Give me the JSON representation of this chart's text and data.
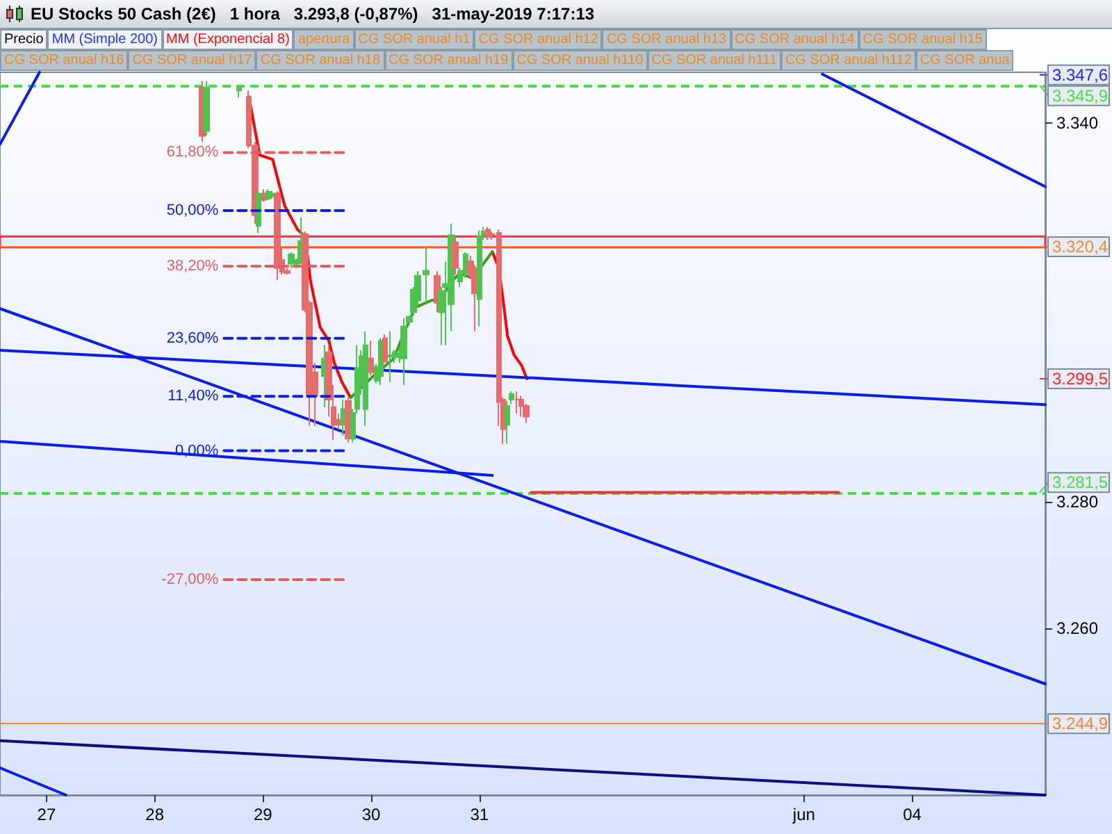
{
  "chart_data": {
    "type": "candlestick",
    "title": "EU Stocks 50 Cash (2€)   1 hora   3.293,8 (-0,87%)   31-may-2019 7:17:13",
    "annotations": [
      "Precio",
      "MM (Simple 200)",
      "MM (Exponencial 8)",
      "apertura",
      "CG SOR anual h1",
      "CG SOR anual h12",
      "CG SOR anual h13",
      "CG SOR anual h14",
      "CG SOR anual h15",
      "CG SOR anual h16",
      "CG SOR anual h17",
      "CG SOR anual h18",
      "CG SOR anual h19",
      "CG SOR anual h110",
      "CG SOR anual h111",
      "CG SOR anual h112",
      "CG SOR anua",
      {
        "text": "3.347,6",
        "y": 3347.6
      },
      {
        "text": "3.299,5",
        "y": 3299.5
      }
    ],
    "xlim": [
      "2019-05-26T13:41",
      "2019-06-05T05:31"
    ],
    "xticks": [
      {
        "value": "2019-05-27",
        "label": "27"
      },
      {
        "value": "2019-05-28",
        "label": "28"
      },
      {
        "value": "2019-05-29",
        "label": "29"
      },
      {
        "value": "2019-05-30",
        "label": "30"
      },
      {
        "value": "2019-05-31",
        "label": "31"
      },
      {
        "value": "2019-06-03",
        "label": "jun"
      },
      {
        "value": "2019-06-04",
        "label": "04"
      }
    ],
    "ylim": [
      3233.6,
      3348.0
    ],
    "yticks": [
      {
        "value": 3260,
        "label": "3.260"
      },
      {
        "value": 3280,
        "label": "3.280"
      },
      {
        "value": 3340,
        "label": "3.340"
      }
    ],
    "grid": false,
    "marker": "none",
    "series": [
      {
        "x": [
          "2019-05-28T10:34",
          "2019-05-28T11:31",
          "2019-05-28T18:43",
          "2019-05-28T20:53",
          "2019-05-28T22:19",
          "2019-05-28T23:02",
          "2019-05-29T00:14",
          "2019-05-29T01:12",
          "2019-05-29T02:10",
          "2019-05-29T03:07",
          "2019-05-29T04:19",
          "2019-05-29T05:17",
          "2019-05-29T06:14",
          "2019-05-29T07:26",
          "2019-05-29T08:24",
          "2019-05-29T09:22",
          "2019-05-29T10:19",
          "2019-05-29T11:31",
          "2019-05-29T13:41",
          "2019-05-29T14:38",
          "2019-05-29T15:36",
          "2019-05-29T16:48",
          "2019-05-29T17:46",
          "2019-05-29T18:58",
          "2019-05-29T19:55",
          "2019-05-29T20:53",
          "2019-05-29T21:50",
          "2019-05-29T22:48",
          "2019-05-30T00:00",
          "2019-05-30T01:12",
          "2019-05-30T02:10",
          "2019-05-30T03:07",
          "2019-05-30T04:19",
          "2019-05-30T05:17",
          "2019-05-30T06:29",
          "2019-05-30T07:12",
          "2019-05-30T08:24",
          "2019-05-30T09:22",
          "2019-05-30T10:19",
          "2019-05-30T12:14",
          "2019-05-30T14:38",
          "2019-05-30T15:36",
          "2019-05-30T16:34",
          "2019-05-30T17:46",
          "2019-05-30T18:43",
          "2019-05-30T19:41",
          "2019-05-30T20:53",
          "2019-05-30T22:05",
          "2019-05-30T23:02",
          "2019-05-31T00:00",
          "2019-05-31T00:58",
          "2019-05-31T01:55",
          "2019-05-31T02:53",
          "2019-05-31T04:19",
          "2019-05-31T05:17",
          "2019-05-31T06:14",
          "2019-05-31T07:12",
          "2019-05-31T08:24",
          "2019-05-31T09:22",
          "2019-05-31T10:19"
        ],
        "ohlc": [
          [
            3345.6,
            3346.6,
            3337.0,
            3337.9
          ],
          [
            3338.7,
            3346.6,
            3338.0,
            3345.6
          ],
          [
            3345.1,
            3346.0,
            3344.0,
            3345.6
          ],
          [
            3344.1,
            3345.1,
            3336.0,
            3336.4
          ],
          [
            3336.4,
            3337.0,
            3324.0,
            3325.4
          ],
          [
            3323.7,
            3329.2,
            3322.6,
            3328.8
          ],
          [
            3328.8,
            3329.5,
            3327.5,
            3327.8
          ],
          [
            3328.0,
            3329.5,
            3327.8,
            3329.1
          ],
          [
            3328.4,
            3329.2,
            3328.0,
            3328.8
          ],
          [
            3328.8,
            3329.2,
            3315.1,
            3317.0
          ],
          [
            3318.3,
            3320.3,
            3316.0,
            3316.4
          ],
          [
            3316.6,
            3317.0,
            3316.0,
            3316.2
          ],
          [
            3317.7,
            3319.5,
            3317.0,
            3319.2
          ],
          [
            3317.7,
            3318.5,
            3317.0,
            3318.3
          ],
          [
            3318.1,
            3325.0,
            3317.7,
            3321.3
          ],
          [
            3322.4,
            3322.8,
            3310.0,
            3310.4
          ],
          [
            3311.5,
            3311.8,
            3292.0,
            3296.9
          ],
          [
            3300.5,
            3302.0,
            3292.0,
            3296.9
          ],
          [
            3299.9,
            3304.8,
            3295.0,
            3302.7
          ],
          [
            3303.7,
            3304.8,
            3293.5,
            3296.2
          ],
          [
            3295.0,
            3298.5,
            3289.8,
            3292.2
          ],
          [
            3293.0,
            3294.0,
            3291.5,
            3292.2
          ],
          [
            3292.2,
            3296.2,
            3290.5,
            3294.7
          ],
          [
            3296.0,
            3296.5,
            3289.4,
            3290.0
          ],
          [
            3290.0,
            3294.7,
            3289.4,
            3294.1
          ],
          [
            3294.7,
            3304.8,
            3294.0,
            3301.2
          ],
          [
            3298.4,
            3304.0,
            3297.0,
            3303.1
          ],
          [
            3294.7,
            3307.0,
            3292.0,
            3304.8
          ],
          [
            3302.7,
            3305.5,
            3300.0,
            3300.5
          ],
          [
            3299.2,
            3301.8,
            3298.8,
            3301.4
          ],
          [
            3299.9,
            3305.9,
            3298.5,
            3305.5
          ],
          [
            3305.9,
            3306.5,
            3302.0,
            3302.2
          ],
          [
            3303.0,
            3307.0,
            3299.0,
            3303.2
          ],
          [
            3302.9,
            3304.0,
            3302.0,
            3303.7
          ],
          [
            3302.9,
            3304.5,
            3302.0,
            3303.5
          ],
          [
            3302.7,
            3309.1,
            3298.5,
            3307.8
          ],
          [
            3308.5,
            3309.5,
            3308.0,
            3309.3
          ],
          [
            3310.0,
            3314.0,
            3309.5,
            3313.6
          ],
          [
            3311.9,
            3316.5,
            3311.0,
            3315.8
          ],
          [
            3316.0,
            3320.3,
            3311.5,
            3316.6
          ],
          [
            3315.8,
            3316.5,
            3310.0,
            3311.5
          ],
          [
            3310.0,
            3314.0,
            3304.8,
            3313.4
          ],
          [
            3314.0,
            3318.0,
            3304.8,
            3314.5
          ],
          [
            3311.3,
            3324.0,
            3307.0,
            3322.2
          ],
          [
            3321.1,
            3322.0,
            3316.0,
            3317.0
          ],
          [
            3314.9,
            3317.0,
            3314.0,
            3316.6
          ],
          [
            3316.2,
            3319.5,
            3315.5,
            3319.2
          ],
          [
            3318.1,
            3319.0,
            3315.5,
            3316.0
          ],
          [
            3317.0,
            3317.5,
            3307.0,
            3313.0
          ],
          [
            3312.1,
            3323.0,
            3307.8,
            3322.0
          ],
          [
            3322.2,
            3323.5,
            3321.5,
            3322.8
          ],
          [
            3323.1,
            3323.5,
            3321.5,
            3322.0
          ],
          [
            3322.4,
            3322.8,
            3321.5,
            3322.2
          ],
          [
            3322.6,
            3323.1,
            3292.0,
            3295.8
          ],
          [
            3296.2,
            3296.5,
            3289.2,
            3291.5
          ],
          [
            3292.2,
            3296.0,
            3289.2,
            3295.2
          ],
          [
            3296.2,
            3297.5,
            3295.5,
            3297.1
          ],
          [
            3296.2,
            3297.5,
            3294.0,
            3296.2
          ],
          [
            3296.2,
            3296.8,
            3293.5,
            3295.2
          ],
          [
            3295.2,
            3295.5,
            3292.5,
            3293.5
          ]
        ],
        "colors": [
          "#e46c6c",
          "#4ec44e",
          "#4ec44e",
          "#e46c6c",
          "#e46c6c",
          "#4ec44e",
          "#e46c6c",
          "#4ec44e",
          "#4ec44e",
          "#e46c6c",
          "#e46c6c",
          "#e46c6c",
          "#4ec44e",
          "#4ec44e",
          "#4ec44e",
          "#e46c6c",
          "#e46c6c",
          "#e46c6c",
          "#4ec44e",
          "#e46c6c",
          "#e46c6c",
          "#e46c6c",
          "#4ec44e",
          "#e46c6c",
          "#4ec44e",
          "#4ec44e",
          "#4ec44e",
          "#4ec44e",
          "#e46c6c",
          "#4ec44e",
          "#4ec44e",
          "#e46c6c",
          "#4ec44e",
          "#4ec44e",
          "#4ec44e",
          "#4ec44e",
          "#4ec44e",
          "#4ec44e",
          "#4ec44e",
          "#4ec44e",
          "#e46c6c",
          "#4ec44e",
          "#4ec44e",
          "#4ec44e",
          "#e46c6c",
          "#4ec44e",
          "#4ec44e",
          "#e46c6c",
          "#e46c6c",
          "#4ec44e",
          "#4ec44e",
          "#e46c6c",
          "#e46c6c",
          "#e46c6c",
          "#e46c6c",
          "#4ec44e",
          "#4ec44e",
          "#e46c6c",
          "#e46c6c",
          "#e46c6c"
        ]
      },
      {
        "type": "line",
        "color": "#ff0000",
        "x": [
          "2019-05-28T20:53",
          "2019-05-28T23:17",
          "2019-05-29T02:10",
          "2019-05-29T04:48",
          "2019-05-29T07:41",
          "2019-05-29T09:22",
          "2019-05-29T10:34",
          "2019-05-29T12:43",
          "2019-05-29T14:38",
          "2019-05-29T15:50",
          "2019-05-29T17:31",
          "2019-05-29T19:26"
        ],
        "values": [
          3344.1,
          3334.9,
          3334.2,
          3326.9,
          3323.1,
          3322.0,
          3314.9,
          3307.6,
          3305.5,
          3302.0,
          3299.0,
          3296.5
        ]
      },
      {
        "type": "line",
        "color": "#ff0000",
        "x": [
          "2019-05-31T02:53",
          "2019-05-31T04:19",
          "2019-05-31T05:17",
          "2019-05-31T06:14",
          "2019-05-31T07:41",
          "2019-05-31T09:22",
          "2019-05-31T10:34"
        ],
        "values": [
          3319.6,
          3317.0,
          3311.9,
          3306.3,
          3303.3,
          3301.6,
          3299.5
        ]
      },
      {
        "type": "line",
        "color": "#3c9a1c",
        "x": [
          "2019-05-29T19:26",
          "2019-05-29T22:19",
          "2019-05-30T00:43",
          "2019-05-30T05:02",
          "2019-05-30T07:26",
          "2019-05-30T09:50",
          "2019-05-30T13:26",
          "2019-05-30T15:36",
          "2019-05-30T17:17",
          "2019-05-30T19:41",
          "2019-05-30T22:05",
          "2019-05-31T00:29",
          "2019-05-31T02:53"
        ],
        "values": [
          3296.5,
          3298.4,
          3300.1,
          3302.7,
          3307.0,
          3310.8,
          3311.9,
          3312.1,
          3314.5,
          3316.2,
          3315.5,
          3317.3,
          3319.6
        ]
      },
      {
        "type": "line",
        "color": "#0a1ee8",
        "x": [
          "2019-05-26T13:41",
          "2019-05-26T22:27"
        ],
        "values": [
          3336.6,
          3348.0
        ]
      },
      {
        "type": "line",
        "color": "#0a1ee8",
        "x": [
          "2019-06-03T04:05",
          "2019-06-05T05:31"
        ],
        "values": [
          3347.7,
          3329.9
        ]
      },
      {
        "type": "line",
        "color": "#0a1ee8",
        "x": [
          "2019-05-26T13:41",
          "2019-06-05T05:31"
        ],
        "values": [
          3304.0,
          3295.4
        ]
      },
      {
        "type": "line",
        "color": "#0a1ee8",
        "x": [
          "2019-05-26T13:41",
          "2019-05-31T02:53"
        ],
        "values": [
          3289.6,
          3284.2
        ]
      },
      {
        "type": "line",
        "color": "#0a1ee8",
        "x": [
          "2019-05-26T13:41",
          "2019-06-05T05:31"
        ],
        "values": [
          3310.6,
          3251.2
        ]
      },
      {
        "type": "line",
        "color": "#0a1080",
        "x": [
          "2019-05-26T13:41",
          "2019-06-05T05:31"
        ],
        "values": [
          3242.2,
          3233.6
        ]
      },
      {
        "type": "line",
        "color": "#0a1ee8",
        "x": [
          "2019-05-26T13:41",
          "2019-05-27T04:19"
        ],
        "values": [
          3237.9,
          3233.6
        ]
      },
      {
        "type": "line",
        "color": "#ee3333",
        "x": [
          "2019-05-31T11:31",
          "2019-06-03T07:41"
        ],
        "values": [
          3281.5,
          3281.5
        ]
      },
      {
        "type": "line",
        "name": "61,80%",
        "color": "#e06060",
        "line_style": "dashed",
        "x": [
          "2019-05-28T15:22",
          "2019-05-29T18:43"
        ],
        "values": [
          3335.3,
          3335.3
        ]
      },
      {
        "type": "line",
        "name": "50,00%",
        "color": "#1020dd",
        "line_style": "dashed",
        "x": [
          "2019-05-28T15:22",
          "2019-05-29T18:43"
        ],
        "values": [
          3326.1,
          3326.1
        ]
      },
      {
        "type": "line",
        "name": "38,20%",
        "color": "#e06060",
        "line_style": "dashed",
        "x": [
          "2019-05-28T15:22",
          "2019-05-29T18:43"
        ],
        "values": [
          3317.3,
          3317.3
        ]
      },
      {
        "type": "line",
        "name": "23,60%",
        "color": "#1020dd",
        "line_style": "dashed",
        "x": [
          "2019-05-28T15:22",
          "2019-05-29T18:43"
        ],
        "values": [
          3305.9,
          3305.9
        ]
      },
      {
        "type": "line",
        "name": "11,40%",
        "color": "#1020dd",
        "line_style": "dashed",
        "x": [
          "2019-05-28T15:22",
          "2019-05-29T18:43"
        ],
        "values": [
          3296.7,
          3296.7
        ]
      },
      {
        "type": "line",
        "name": "0,00%",
        "color": "#1020dd",
        "line_style": "dashed",
        "x": [
          "2019-05-28T15:22",
          "2019-05-29T18:43"
        ],
        "values": [
          3288.1,
          3288.1
        ]
      },
      {
        "type": "line",
        "name": "-27,00%",
        "color": "#e06060",
        "line_style": "dashed",
        "x": [
          "2019-05-28T15:22",
          "2019-05-29T18:43"
        ],
        "values": [
          3267.7,
          3267.7
        ]
      }
    ],
    "bands": [
      {
        "axis": "y",
        "from": 3320.3,
        "to": 3322.0,
        "color": "#ee3333"
      }
    ],
    "ref_lines": [
      {
        "axis": "y",
        "value": 3345.9,
        "label": "3.345,9",
        "color": "#44dd44",
        "line_style": "dashed"
      },
      {
        "axis": "y",
        "value": 3320.4,
        "label": "3.320,4",
        "color": "#ee8833",
        "line_style": "solid"
      },
      {
        "axis": "y",
        "value": 3281.5,
        "label": "3.281,5",
        "color": "#44dd44",
        "line_style": "dashed"
      },
      {
        "axis": "y",
        "value": 3244.9,
        "label": "3.244,9",
        "color": "#ee8833",
        "line_style": "solid"
      }
    ]
  }
}
